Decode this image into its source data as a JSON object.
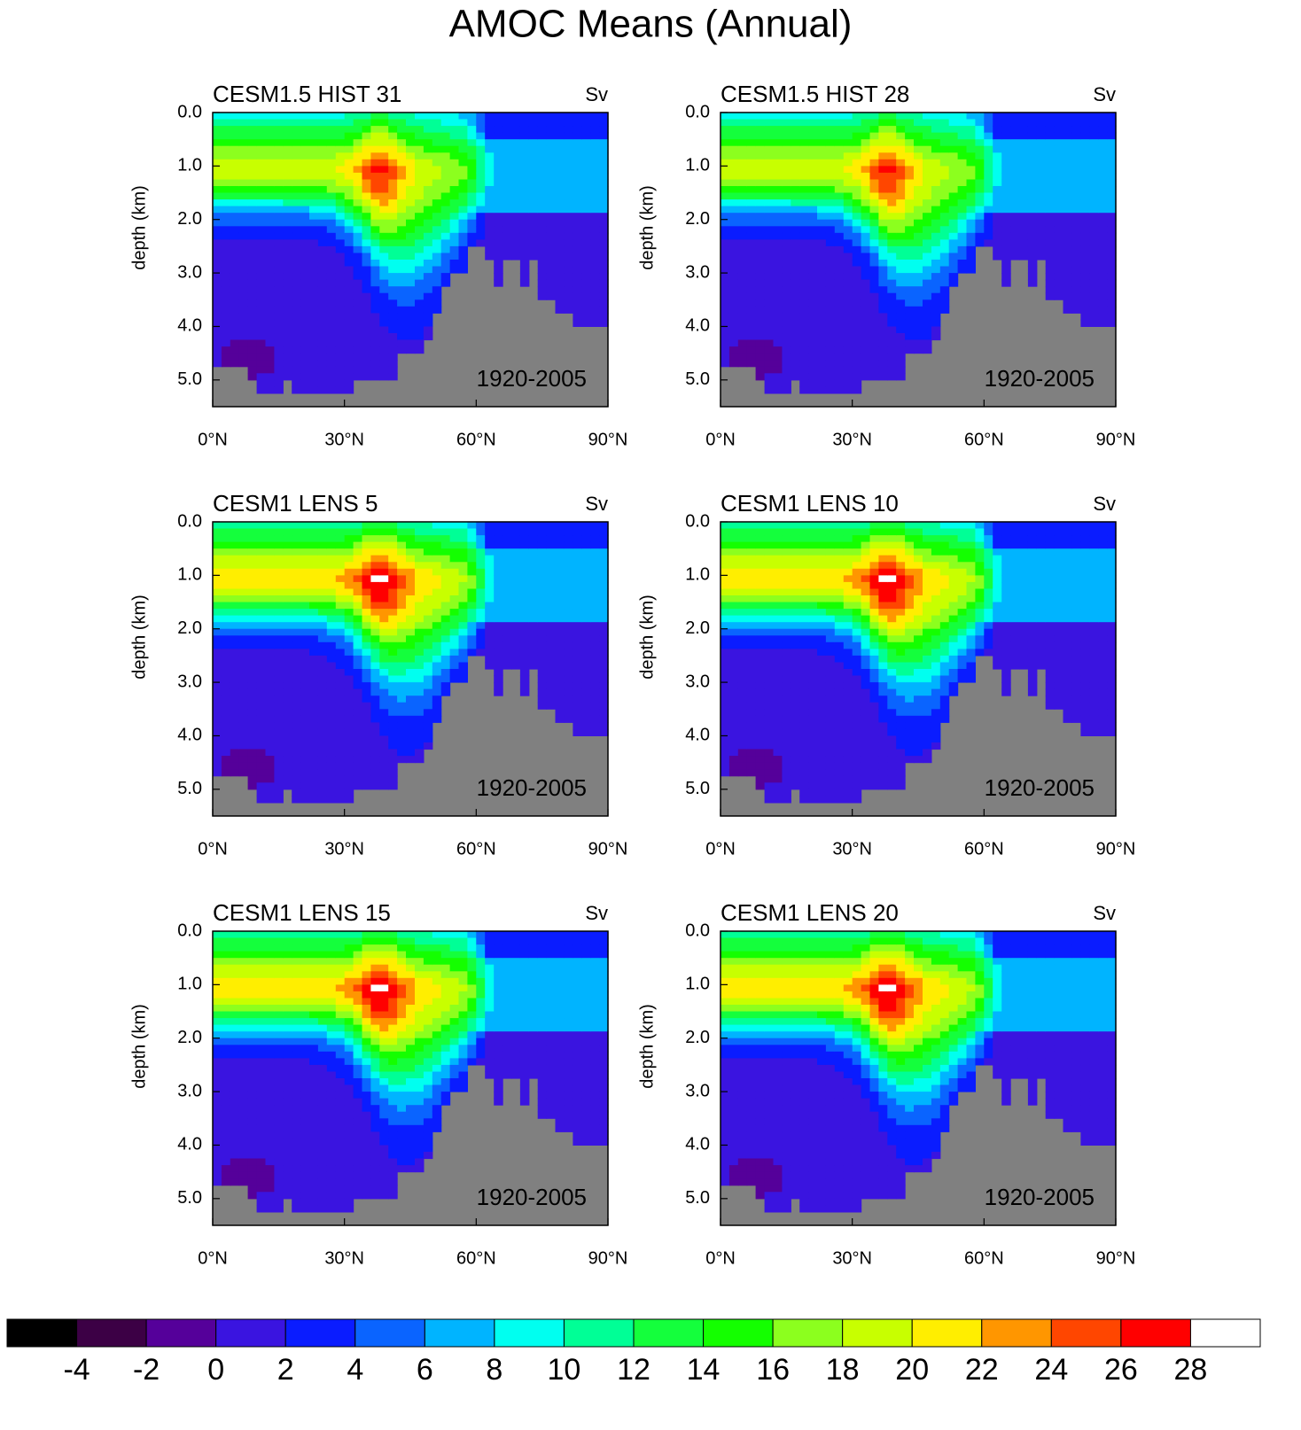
{
  "title": "AMOC Means (Annual)",
  "chart_data": [
    {
      "type": "contour",
      "title": "CESM1.5 HIST 31",
      "units": "Sv",
      "annotation": "1920-2005",
      "ylabel": "depth (km)",
      "xlim": [
        0,
        90
      ],
      "ylim": [
        0,
        5.5
      ],
      "y_inverted": true,
      "xticks": [
        {
          "value": 0,
          "label": "0°N"
        },
        {
          "value": 30,
          "label": "30°N"
        },
        {
          "value": 60,
          "label": "60°N"
        },
        {
          "value": 90,
          "label": "90°N"
        }
      ],
      "yticks": [
        {
          "value": 0,
          "label": "0.0"
        },
        {
          "value": 1,
          "label": "1.0"
        },
        {
          "value": 2,
          "label": "2.0"
        },
        {
          "value": 3,
          "label": "3.0"
        },
        {
          "value": 4,
          "label": "4.0"
        },
        {
          "value": 5,
          "label": "5.0"
        }
      ]
    },
    {
      "type": "contour",
      "title": "CESM1.5 HIST 28",
      "units": "Sv",
      "annotation": "1920-2005",
      "ylabel": "depth (km)",
      "xlim": [
        0,
        90
      ],
      "ylim": [
        0,
        5.5
      ],
      "y_inverted": true,
      "xticks": [
        {
          "value": 0,
          "label": "0°N"
        },
        {
          "value": 30,
          "label": "30°N"
        },
        {
          "value": 60,
          "label": "60°N"
        },
        {
          "value": 90,
          "label": "90°N"
        }
      ],
      "yticks": [
        {
          "value": 0,
          "label": "0.0"
        },
        {
          "value": 1,
          "label": "1.0"
        },
        {
          "value": 2,
          "label": "2.0"
        },
        {
          "value": 3,
          "label": "3.0"
        },
        {
          "value": 4,
          "label": "4.0"
        },
        {
          "value": 5,
          "label": "5.0"
        }
      ]
    },
    {
      "type": "contour",
      "title": "CESM1 LENS 5",
      "units": "Sv",
      "annotation": "1920-2005",
      "ylabel": "depth (km)",
      "xlim": [
        0,
        90
      ],
      "ylim": [
        0,
        5.5
      ],
      "y_inverted": true,
      "xticks": [
        {
          "value": 0,
          "label": "0°N"
        },
        {
          "value": 30,
          "label": "30°N"
        },
        {
          "value": 60,
          "label": "60°N"
        },
        {
          "value": 90,
          "label": "90°N"
        }
      ],
      "yticks": [
        {
          "value": 0,
          "label": "0.0"
        },
        {
          "value": 1,
          "label": "1.0"
        },
        {
          "value": 2,
          "label": "2.0"
        },
        {
          "value": 3,
          "label": "3.0"
        },
        {
          "value": 4,
          "label": "4.0"
        },
        {
          "value": 5,
          "label": "5.0"
        }
      ]
    },
    {
      "type": "contour",
      "title": "CESM1 LENS 10",
      "units": "Sv",
      "annotation": "1920-2005",
      "ylabel": "depth (km)",
      "xlim": [
        0,
        90
      ],
      "ylim": [
        0,
        5.5
      ],
      "y_inverted": true,
      "xticks": [
        {
          "value": 0,
          "label": "0°N"
        },
        {
          "value": 30,
          "label": "30°N"
        },
        {
          "value": 60,
          "label": "60°N"
        },
        {
          "value": 90,
          "label": "90°N"
        }
      ],
      "yticks": [
        {
          "value": 0,
          "label": "0.0"
        },
        {
          "value": 1,
          "label": "1.0"
        },
        {
          "value": 2,
          "label": "2.0"
        },
        {
          "value": 3,
          "label": "3.0"
        },
        {
          "value": 4,
          "label": "4.0"
        },
        {
          "value": 5,
          "label": "5.0"
        }
      ]
    },
    {
      "type": "contour",
      "title": "CESM1 LENS 15",
      "units": "Sv",
      "annotation": "1920-2005",
      "ylabel": "depth (km)",
      "xlim": [
        0,
        90
      ],
      "ylim": [
        0,
        5.5
      ],
      "y_inverted": true,
      "xticks": [
        {
          "value": 0,
          "label": "0°N"
        },
        {
          "value": 30,
          "label": "30°N"
        },
        {
          "value": 60,
          "label": "60°N"
        },
        {
          "value": 90,
          "label": "90°N"
        }
      ],
      "yticks": [
        {
          "value": 0,
          "label": "0.0"
        },
        {
          "value": 1,
          "label": "1.0"
        },
        {
          "value": 2,
          "label": "2.0"
        },
        {
          "value": 3,
          "label": "3.0"
        },
        {
          "value": 4,
          "label": "4.0"
        },
        {
          "value": 5,
          "label": "5.0"
        }
      ]
    },
    {
      "type": "contour",
      "title": "CESM1 LENS 20",
      "units": "Sv",
      "annotation": "1920-2005",
      "ylabel": "depth (km)",
      "xlim": [
        0,
        90
      ],
      "ylim": [
        0,
        5.5
      ],
      "y_inverted": true,
      "xticks": [
        {
          "value": 0,
          "label": "0°N"
        },
        {
          "value": 30,
          "label": "30°N"
        },
        {
          "value": 60,
          "label": "60°N"
        },
        {
          "value": 90,
          "label": "90°N"
        }
      ],
      "yticks": [
        {
          "value": 0,
          "label": "0.0"
        },
        {
          "value": 1,
          "label": "1.0"
        },
        {
          "value": 2,
          "label": "2.0"
        },
        {
          "value": 3,
          "label": "3.0"
        },
        {
          "value": 4,
          "label": "4.0"
        },
        {
          "value": 5,
          "label": "5.0"
        }
      ]
    }
  ],
  "colorbar": {
    "levels": [
      -4,
      -2,
      0,
      2,
      4,
      6,
      8,
      10,
      12,
      14,
      16,
      18,
      20,
      22,
      24,
      26,
      28
    ],
    "colors": [
      "#000000",
      "#3c0045",
      "#55009a",
      "#3a14e0",
      "#0a1cff",
      "#0a64ff",
      "#00b4ff",
      "#00fff0",
      "#00ff96",
      "#14ff3c",
      "#14ff00",
      "#8cff1e",
      "#c8ff00",
      "#ffee00",
      "#ff9600",
      "#ff4600",
      "#ff0000",
      "#ffffff"
    ]
  }
}
